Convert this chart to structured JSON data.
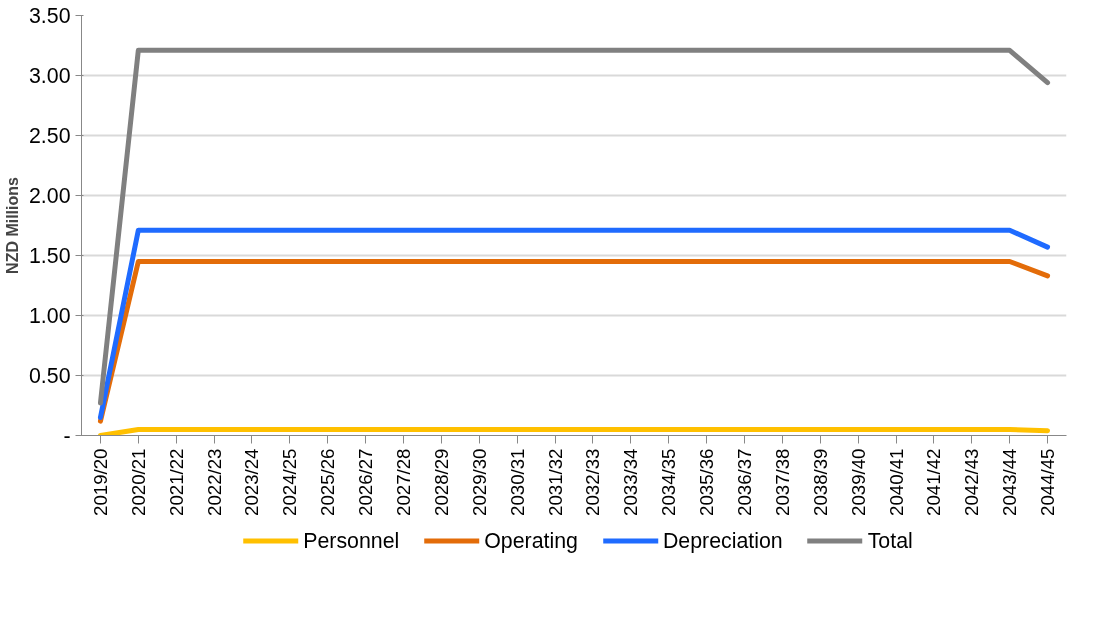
{
  "chart_data": {
    "type": "line",
    "ylabel": "NZD Millions",
    "categories": [
      "2019/20",
      "2020/21",
      "2021/22",
      "2022/23",
      "2023/24",
      "2024/25",
      "2025/26",
      "2026/27",
      "2027/28",
      "2028/29",
      "2029/30",
      "2030/31",
      "2031/32",
      "2032/33",
      "2033/34",
      "2034/35",
      "2035/36",
      "2036/37",
      "2037/38",
      "2038/39",
      "2039/40",
      "2040/41",
      "2041/42",
      "2042/43",
      "2043/44",
      "2044/45"
    ],
    "series": [
      {
        "name": "Personnel",
        "color": "#ffc000",
        "values": [
          0.0,
          0.05,
          0.05,
          0.05,
          0.05,
          0.05,
          0.05,
          0.05,
          0.05,
          0.05,
          0.05,
          0.05,
          0.05,
          0.05,
          0.05,
          0.05,
          0.05,
          0.05,
          0.05,
          0.05,
          0.05,
          0.05,
          0.05,
          0.05,
          0.05,
          0.04
        ]
      },
      {
        "name": "Operating",
        "color": "#e36c09",
        "values": [
          0.12,
          1.45,
          1.45,
          1.45,
          1.45,
          1.45,
          1.45,
          1.45,
          1.45,
          1.45,
          1.45,
          1.45,
          1.45,
          1.45,
          1.45,
          1.45,
          1.45,
          1.45,
          1.45,
          1.45,
          1.45,
          1.45,
          1.45,
          1.45,
          1.45,
          1.33
        ]
      },
      {
        "name": "Depreciation",
        "color": "#1f6bff",
        "values": [
          0.15,
          1.71,
          1.71,
          1.71,
          1.71,
          1.71,
          1.71,
          1.71,
          1.71,
          1.71,
          1.71,
          1.71,
          1.71,
          1.71,
          1.71,
          1.71,
          1.71,
          1.71,
          1.71,
          1.71,
          1.71,
          1.71,
          1.71,
          1.71,
          1.71,
          1.57
        ]
      },
      {
        "name": "Total",
        "color": "#808080",
        "values": [
          0.27,
          3.21,
          3.21,
          3.21,
          3.21,
          3.21,
          3.21,
          3.21,
          3.21,
          3.21,
          3.21,
          3.21,
          3.21,
          3.21,
          3.21,
          3.21,
          3.21,
          3.21,
          3.21,
          3.21,
          3.21,
          3.21,
          3.21,
          3.21,
          3.21,
          2.94
        ]
      }
    ],
    "ylim": [
      0,
      3.5
    ],
    "yticks": [
      {
        "value": 0,
        "label": "-"
      },
      {
        "value": 0.5,
        "label": "0.50"
      },
      {
        "value": 1,
        "label": "1.00"
      },
      {
        "value": 1.5,
        "label": "1.50"
      },
      {
        "value": 2,
        "label": "2.00"
      },
      {
        "value": 2.5,
        "label": "2.50"
      },
      {
        "value": 3,
        "label": "3.00"
      },
      {
        "value": 3.5,
        "label": "3.50"
      }
    ],
    "grid": "y",
    "legend": "bottom",
    "marker": "none",
    "line_style": "solid"
  }
}
